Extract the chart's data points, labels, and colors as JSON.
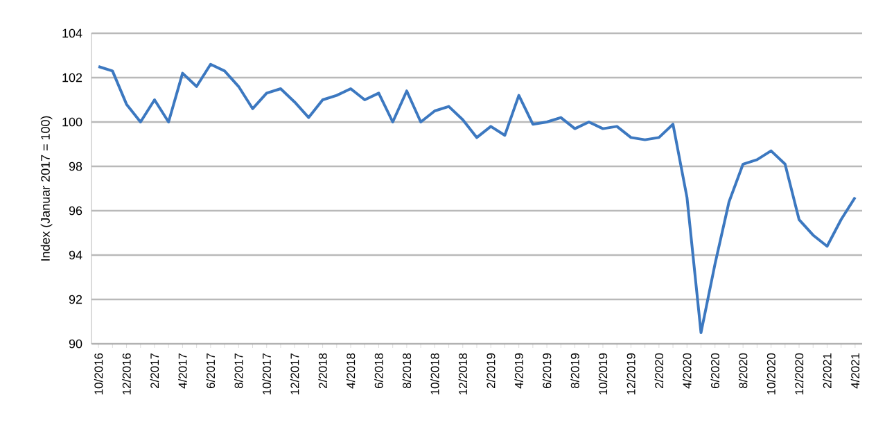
{
  "chart_data": {
    "type": "line",
    "ylabel": "Index (Januar 2017 = 100)",
    "categories": [
      "10/2016",
      null,
      "12/2016",
      null,
      "2/2017",
      null,
      "4/2017",
      null,
      "6/2017",
      null,
      "8/2017",
      null,
      "10/2017",
      null,
      "12/2017",
      null,
      "2/2018",
      null,
      "4/2018",
      null,
      "6/2018",
      null,
      "8/2018",
      null,
      "10/2018",
      null,
      "12/2018",
      null,
      "2/2019",
      null,
      "4/2019",
      null,
      "6/2019",
      null,
      "8/2019",
      null,
      "10/2019",
      null,
      "12/2019",
      null,
      "2/2020",
      null,
      "4/2020",
      null,
      "6/2020",
      null,
      "8/2020",
      null,
      "10/2020",
      null,
      "12/2020",
      null,
      "2/2021",
      null,
      "4/2021"
    ],
    "series": [
      {
        "color": "#3c78c0",
        "values": [
          102.5,
          102.3,
          100.8,
          100.0,
          101.0,
          100.0,
          102.2,
          101.6,
          102.6,
          102.3,
          101.6,
          100.6,
          101.3,
          101.5,
          100.9,
          100.2,
          101.0,
          101.2,
          101.5,
          101.0,
          101.3,
          100.0,
          101.4,
          100.0,
          100.5,
          100.7,
          100.1,
          99.3,
          99.8,
          99.4,
          101.2,
          99.9,
          100.0,
          100.2,
          99.7,
          100.0,
          99.7,
          99.8,
          99.3,
          99.2,
          99.3,
          99.9,
          96.6,
          90.5,
          93.6,
          96.4,
          98.1,
          98.3,
          98.7,
          98.1,
          95.6,
          94.9,
          94.4,
          95.6,
          96.6
        ]
      }
    ],
    "ylim": [
      90,
      104
    ],
    "yticks": [
      90,
      92,
      94,
      96,
      98,
      100,
      102,
      104
    ],
    "grid": "y",
    "line_style": "solid",
    "marker": "none"
  }
}
